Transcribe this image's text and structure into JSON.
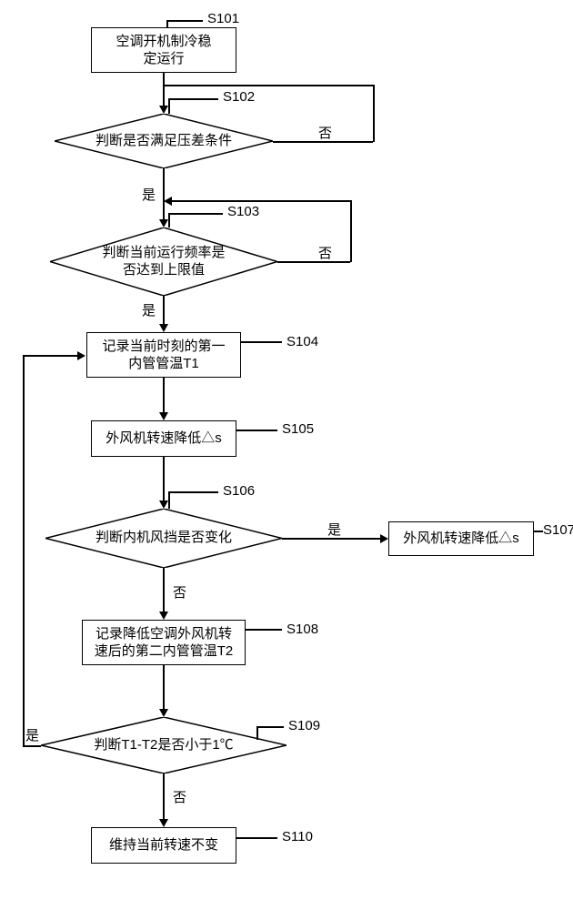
{
  "colors": {
    "stroke": "#000000",
    "bg": "#ffffff"
  },
  "nodes": {
    "s101": {
      "text": "空调开机制冷稳\n定运行",
      "label": "S101"
    },
    "s102": {
      "text": "判断是否满足压差条件",
      "label": "S102"
    },
    "s103": {
      "text": "判断当前运行频率是\n否达到上限值",
      "label": "S103"
    },
    "s104": {
      "text": "记录当前时刻的第一\n内管管温T1",
      "label": "S104"
    },
    "s105": {
      "text": "外风机转速降低△s",
      "label": "S105"
    },
    "s106": {
      "text": "判断内机风挡是否变化",
      "label": "S106"
    },
    "s107": {
      "text": "外风机转速降低△s",
      "label": "S107"
    },
    "s108": {
      "text": "记录降低空调外风机转\n速后的第二内管管温T2",
      "label": "S108"
    },
    "s109": {
      "text": "判断T1-T2是否小于1℃",
      "label": "S109"
    },
    "s110": {
      "text": "维持当前转速不变",
      "label": "S110"
    }
  },
  "edges": {
    "yes": "是",
    "no": "否"
  }
}
